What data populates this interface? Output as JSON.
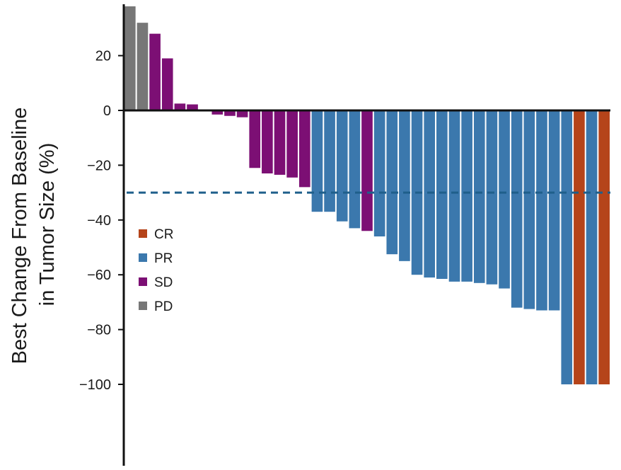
{
  "chart_data": {
    "type": "bar",
    "title": "",
    "xlabel": "",
    "ylabel_lines": [
      "Best Change From Baseline",
      "in Tumor Size (%)"
    ],
    "ylim": [
      -130,
      38
    ],
    "yticks": [
      20,
      0,
      -20,
      -40,
      -60,
      -80,
      -100
    ],
    "ytick_labels": [
      "20",
      "0",
      "−20",
      "−40",
      "−60",
      "−80",
      "−100"
    ],
    "reference_line": {
      "value": -30,
      "style": "dashed",
      "color": "#1f5f8b"
    },
    "colors": {
      "CR": "#b5441a",
      "PR": "#3b78ad",
      "SD": "#7c0f74",
      "PD": "#777777"
    },
    "legend": [
      {
        "key": "CR",
        "label": "CR"
      },
      {
        "key": "PR",
        "label": "PR"
      },
      {
        "key": "SD",
        "label": "SD"
      },
      {
        "key": "PD",
        "label": "PD"
      }
    ],
    "bars": [
      {
        "value": 38,
        "category": "PD"
      },
      {
        "value": 32,
        "category": "PD"
      },
      {
        "value": 28,
        "category": "SD"
      },
      {
        "value": 19,
        "category": "SD"
      },
      {
        "value": 2.5,
        "category": "SD"
      },
      {
        "value": 2.2,
        "category": "SD"
      },
      {
        "value": 0,
        "category": "SD"
      },
      {
        "value": -1.5,
        "category": "SD"
      },
      {
        "value": -2,
        "category": "SD"
      },
      {
        "value": -2.5,
        "category": "SD"
      },
      {
        "value": -21,
        "category": "SD"
      },
      {
        "value": -23,
        "category": "SD"
      },
      {
        "value": -23.5,
        "category": "SD"
      },
      {
        "value": -24.5,
        "category": "SD"
      },
      {
        "value": -28,
        "category": "SD"
      },
      {
        "value": -37,
        "category": "PR"
      },
      {
        "value": -37,
        "category": "PR"
      },
      {
        "value": -40.5,
        "category": "PR"
      },
      {
        "value": -43,
        "category": "PR"
      },
      {
        "value": -44,
        "category": "SD"
      },
      {
        "value": -46,
        "category": "PR"
      },
      {
        "value": -52.5,
        "category": "PR"
      },
      {
        "value": -55,
        "category": "PR"
      },
      {
        "value": -60,
        "category": "PR"
      },
      {
        "value": -61,
        "category": "PR"
      },
      {
        "value": -61.5,
        "category": "PR"
      },
      {
        "value": -62.5,
        "category": "PR"
      },
      {
        "value": -62.5,
        "category": "PR"
      },
      {
        "value": -63,
        "category": "PR"
      },
      {
        "value": -63.5,
        "category": "PR"
      },
      {
        "value": -65,
        "category": "PR"
      },
      {
        "value": -72,
        "category": "PR"
      },
      {
        "value": -72.5,
        "category": "PR"
      },
      {
        "value": -73,
        "category": "PR"
      },
      {
        "value": -73,
        "category": "PR"
      },
      {
        "value": -100,
        "category": "PR"
      },
      {
        "value": -100,
        "category": "CR"
      },
      {
        "value": -100,
        "category": "PR"
      },
      {
        "value": -100,
        "category": "CR"
      }
    ]
  }
}
